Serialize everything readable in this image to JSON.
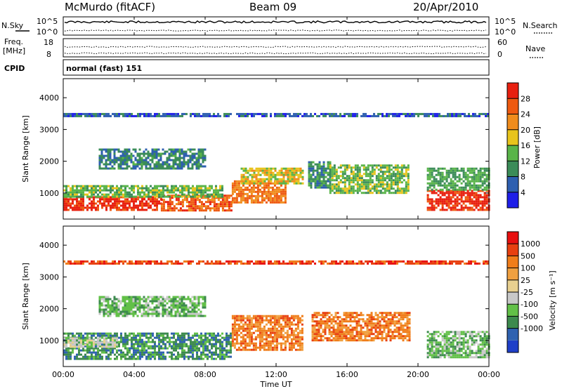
{
  "header": {
    "station": "McMurdo (fitACF)",
    "beam": "Beam 09",
    "date": "20/Apr/2010",
    "cpid": "normal (fast) 151"
  },
  "side_labels": {
    "nsky": "N.Sky",
    "freq": "Freq.",
    "freq_unit": "[MHz]",
    "cpid": "CPID",
    "nsearch": "N.Search",
    "nave": "Nave"
  },
  "strip_ticks": {
    "noise_left": [
      "10^5",
      "10^0"
    ],
    "noise_right": [
      "10^5",
      "10^0"
    ],
    "freq_left": [
      "18",
      "8"
    ],
    "nave_right": [
      "60",
      "0"
    ]
  },
  "colors": {
    "power_scale": [
      "#1f1fe8",
      "#2e5fb0",
      "#3b8c58",
      "#59b449",
      "#e8c41c",
      "#f08c1c",
      "#ee5a10",
      "#e82010"
    ],
    "velocity_scale": [
      "#1f3fc8",
      "#2f62b0",
      "#3d8a4e",
      "#62c048",
      "#c8c8c8",
      "#e8d090",
      "#f0a040",
      "#f07d1a",
      "#e84010",
      "#e81010"
    ],
    "ground_scatter": "#bdbdbd"
  },
  "chart_data": [
    {
      "type": "heatmap",
      "title": "Power",
      "xlabel": "",
      "ylabel": "Slant Range [km]",
      "x_ticks": [
        "00:00",
        "04:00",
        "08:00",
        "12:00",
        "16:00",
        "20:00",
        "00:00"
      ],
      "y_ticks": [
        "1000",
        "2000",
        "3000",
        "4000"
      ],
      "xlim": [
        0,
        24
      ],
      "ylim": [
        180,
        4600
      ],
      "colorbar": {
        "label": "Power [dB]",
        "ticks": [
          "4",
          "8",
          "12",
          "16",
          "20",
          "24",
          "28"
        ],
        "range": [
          0,
          32
        ]
      },
      "regions": [
        {
          "t": [
            0.0,
            5.5
          ],
          "r": [
            450,
            900
          ],
          "level": 30
        },
        {
          "t": [
            5.5,
            9.5
          ],
          "r": [
            450,
            950
          ],
          "level": 26
        },
        {
          "t": [
            9.5,
            12.5
          ],
          "r": [
            700,
            1400
          ],
          "level": 24
        },
        {
          "t": [
            0.0,
            9.0
          ],
          "r": [
            900,
            1250
          ],
          "level": 14
        },
        {
          "t": [
            10.0,
            13.5
          ],
          "r": [
            1300,
            1800
          ],
          "level": 18
        },
        {
          "t": [
            13.8,
            15.0
          ],
          "r": [
            1200,
            2000
          ],
          "level": 10
        },
        {
          "t": [
            15.0,
            19.5
          ],
          "r": [
            1000,
            1900
          ],
          "level": 14
        },
        {
          "t": [
            20.5,
            24.0
          ],
          "r": [
            450,
            1100
          ],
          "level": 30
        },
        {
          "t": [
            20.5,
            24.0
          ],
          "r": [
            1100,
            1800
          ],
          "level": 12
        },
        {
          "t": [
            2.0,
            8.0
          ],
          "r": [
            1800,
            2400
          ],
          "level": 9
        },
        {
          "t": [
            0.0,
            24.0
          ],
          "r": [
            3420,
            3520
          ],
          "level": 6
        }
      ]
    },
    {
      "type": "heatmap",
      "title": "Velocity",
      "xlabel": "Time UT",
      "ylabel": "Slant Range [km]",
      "x_ticks": [
        "00:00",
        "04:00",
        "08:00",
        "12:00",
        "16:00",
        "20:00",
        "00:00"
      ],
      "y_ticks": [
        "1000",
        "2000",
        "3000",
        "4000"
      ],
      "xlim": [
        0,
        24
      ],
      "ylim": [
        180,
        4600
      ],
      "colorbar": {
        "label": "Velocity [m s⁻¹]",
        "ticks": [
          "1000",
          "500",
          "100",
          "25",
          "-25",
          "-100",
          "-500",
          "-1000"
        ],
        "range": [
          -1200,
          1200
        ]
      },
      "regions": [
        {
          "t": [
            0.0,
            9.5
          ],
          "r": [
            450,
            1250
          ],
          "level": 2
        },
        {
          "t": [
            0.0,
            3.0
          ],
          "r": [
            800,
            1100
          ],
          "level": 4
        },
        {
          "t": [
            9.5,
            13.5
          ],
          "r": [
            700,
            1800
          ],
          "level": 7
        },
        {
          "t": [
            14.0,
            19.5
          ],
          "r": [
            1000,
            1900
          ],
          "level": 7
        },
        {
          "t": [
            20.5,
            24.0
          ],
          "r": [
            450,
            1300
          ],
          "level": 3
        },
        {
          "t": [
            2.0,
            8.0
          ],
          "r": [
            1800,
            2400
          ],
          "level": 3
        },
        {
          "t": [
            0.0,
            24.0
          ],
          "r": [
            3420,
            3520
          ],
          "level": 8
        }
      ]
    }
  ],
  "noise_series": {
    "nsky_level": 0.72,
    "nsearch_level": 0.25,
    "freq_level": 0.55,
    "nave_level": 0.2
  }
}
